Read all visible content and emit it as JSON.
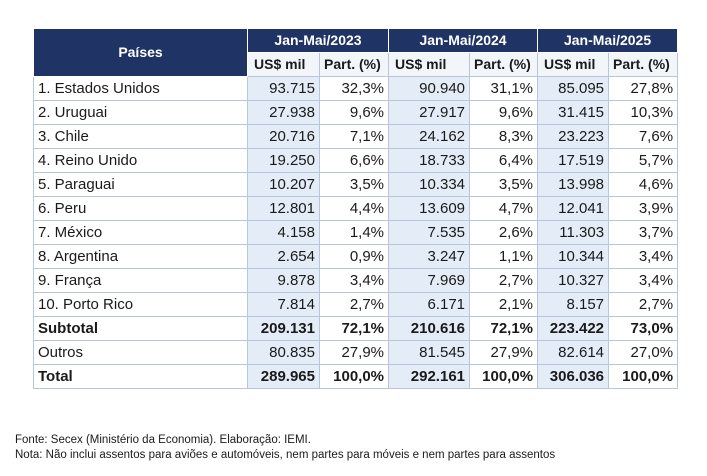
{
  "table": {
    "header_country": "Países",
    "periods": [
      "Jan-Mai/2023",
      "Jan-Mai/2024",
      "Jan-Mai/2025"
    ],
    "subheaders": [
      "US$ mil",
      "Part. (%)",
      "US$ mil",
      "Part. (%)",
      "US$ mil",
      "Part. (%)"
    ],
    "rows": [
      {
        "country": "1. Estados Unidos",
        "values": [
          "93.715",
          "32,3%",
          "90.940",
          "31,1%",
          "85.095",
          "27,8%"
        ]
      },
      {
        "country": "2. Uruguai",
        "values": [
          "27.938",
          "9,6%",
          "27.917",
          "9,6%",
          "31.415",
          "10,3%"
        ]
      },
      {
        "country": "3. Chile",
        "values": [
          "20.716",
          "7,1%",
          "24.162",
          "8,3%",
          "23.223",
          "7,6%"
        ]
      },
      {
        "country": "4. Reino Unido",
        "values": [
          "19.250",
          "6,6%",
          "18.733",
          "6,4%",
          "17.519",
          "5,7%"
        ]
      },
      {
        "country": "5. Paraguai",
        "values": [
          "10.207",
          "3,5%",
          "10.334",
          "3,5%",
          "13.998",
          "4,6%"
        ]
      },
      {
        "country": "6. Peru",
        "values": [
          "12.801",
          "4,4%",
          "13.609",
          "4,7%",
          "12.041",
          "3,9%"
        ]
      },
      {
        "country": "7. México",
        "values": [
          "4.158",
          "1,4%",
          "7.535",
          "2,6%",
          "11.303",
          "3,7%"
        ]
      },
      {
        "country": "8. Argentina",
        "values": [
          "2.654",
          "0,9%",
          "3.247",
          "1,1%",
          "10.344",
          "3,4%"
        ]
      },
      {
        "country": "9. França",
        "values": [
          "9.878",
          "3,4%",
          "7.969",
          "2,7%",
          "10.327",
          "3,4%"
        ]
      },
      {
        "country": "10. Porto Rico",
        "values": [
          "7.814",
          "2,7%",
          "6.171",
          "2,1%",
          "8.157",
          "2,7%"
        ]
      }
    ],
    "subtotal": {
      "label": "Subtotal",
      "values": [
        "209.131",
        "72,1%",
        "210.616",
        "72,1%",
        "223.422",
        "73,0%"
      ]
    },
    "outros": {
      "label": "Outros",
      "values": [
        "80.835",
        "27,9%",
        "81.545",
        "27,9%",
        "82.614",
        "27,0%"
      ]
    },
    "total": {
      "label": "Total",
      "values": [
        "289.965",
        "100,0%",
        "292.161",
        "100,0%",
        "306.036",
        "100,0%"
      ]
    }
  },
  "footer": {
    "source": "Fonte: Secex (Ministério da Economia). Elaboração: IEMI.",
    "note": "Nota: Não inclui assentos para aviões e automóveis, nem partes para móveis e nem partes para assentos"
  },
  "colors": {
    "header_bg": "#1f3364",
    "header_text": "#ffffff",
    "shaded_cell": "#e3ecf7",
    "border": "#b9c6d9"
  }
}
